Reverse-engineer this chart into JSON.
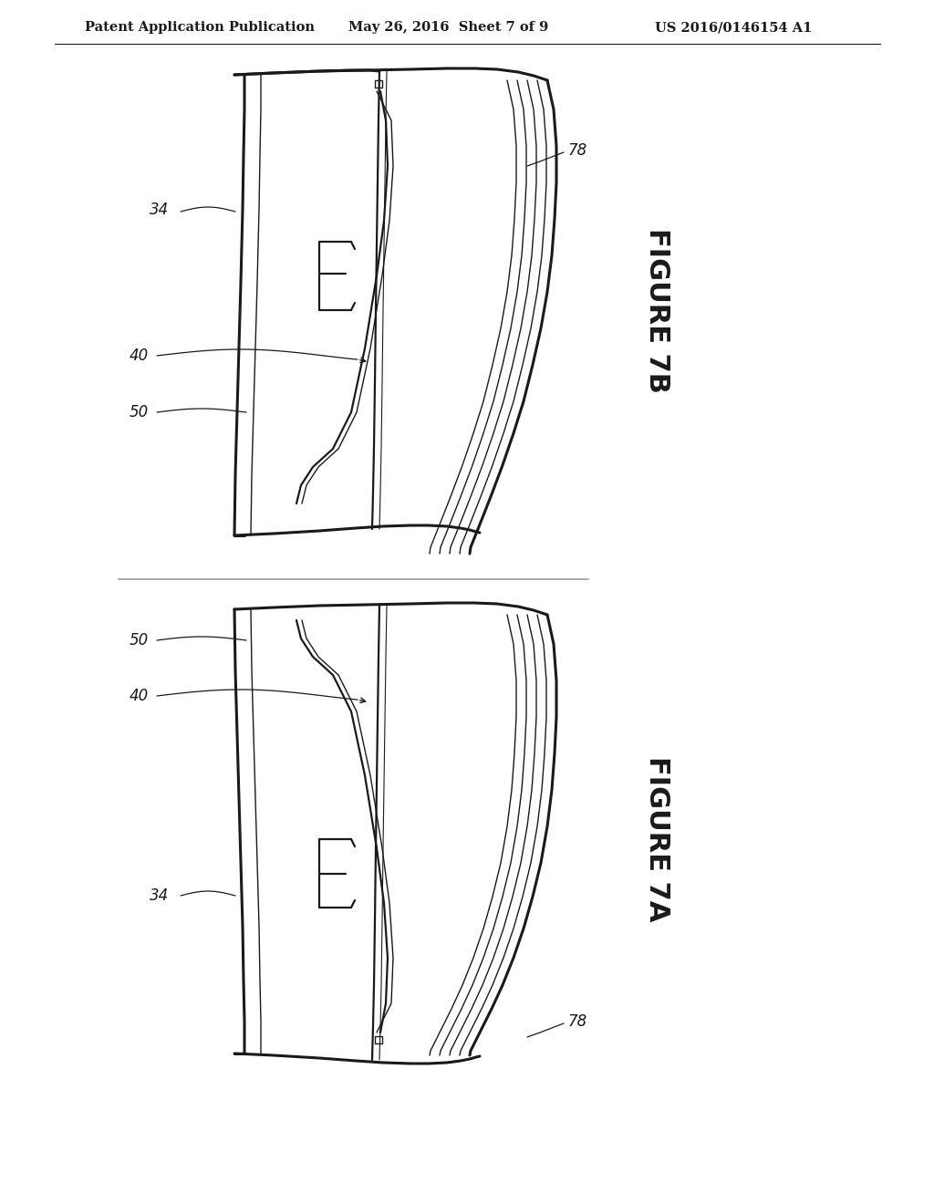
{
  "bg_color": "#ffffff",
  "line_color": "#1a1a1a",
  "header_text": "Patent Application Publication",
  "header_date": "May 26, 2016  Sheet 7 of 9",
  "header_patent": "US 2016/0146154 A1",
  "fig7b_label": "FIGURE 7B",
  "fig7a_label": "FIGURE 7A",
  "header_font_size": 10.5,
  "label_font_size": 12,
  "figure_label_font_size": 22
}
